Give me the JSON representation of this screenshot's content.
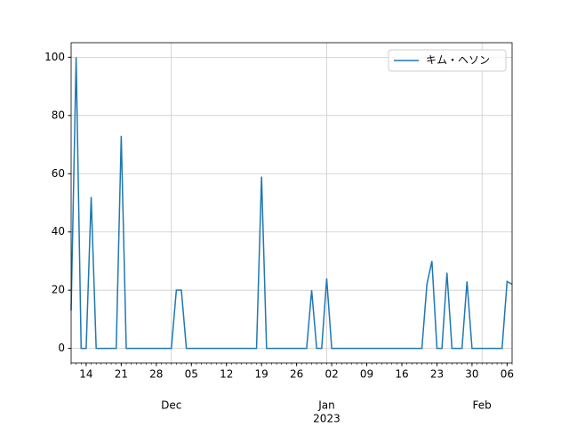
{
  "chart_data": {
    "type": "line",
    "x": [
      "2022-11-11",
      "2022-11-12",
      "2022-11-13",
      "2022-11-14",
      "2022-11-15",
      "2022-11-16",
      "2022-11-17",
      "2022-11-18",
      "2022-11-19",
      "2022-11-20",
      "2022-11-21",
      "2022-11-22",
      "2022-11-23",
      "2022-11-24",
      "2022-11-25",
      "2022-11-26",
      "2022-11-27",
      "2022-11-28",
      "2022-11-29",
      "2022-11-30",
      "2022-12-01",
      "2022-12-02",
      "2022-12-03",
      "2022-12-04",
      "2022-12-05",
      "2022-12-06",
      "2022-12-07",
      "2022-12-08",
      "2022-12-09",
      "2022-12-10",
      "2022-12-11",
      "2022-12-12",
      "2022-12-13",
      "2022-12-14",
      "2022-12-15",
      "2022-12-16",
      "2022-12-17",
      "2022-12-18",
      "2022-12-19",
      "2022-12-20",
      "2022-12-21",
      "2022-12-22",
      "2022-12-23",
      "2022-12-24",
      "2022-12-25",
      "2022-12-26",
      "2022-12-27",
      "2022-12-28",
      "2022-12-29",
      "2022-12-30",
      "2022-12-31",
      "2023-01-01",
      "2023-01-02",
      "2023-01-03",
      "2023-01-04",
      "2023-01-05",
      "2023-01-06",
      "2023-01-07",
      "2023-01-08",
      "2023-01-09",
      "2023-01-10",
      "2023-01-11",
      "2023-01-12",
      "2023-01-13",
      "2023-01-14",
      "2023-01-15",
      "2023-01-16",
      "2023-01-17",
      "2023-01-18",
      "2023-01-19",
      "2023-01-20",
      "2023-01-21",
      "2023-01-22",
      "2023-01-23",
      "2023-01-24",
      "2023-01-25",
      "2023-01-26",
      "2023-01-27",
      "2023-01-28",
      "2023-01-29",
      "2023-01-30",
      "2023-01-31",
      "2023-02-01",
      "2023-02-02",
      "2023-02-03",
      "2023-02-04",
      "2023-02-05",
      "2023-02-06",
      "2023-02-07"
    ],
    "series": [
      {
        "name": "キム・ヘソン",
        "color": "#1f77b4",
        "values": [
          13,
          100,
          0,
          0,
          52,
          0,
          0,
          0,
          0,
          0,
          73,
          0,
          0,
          0,
          0,
          0,
          0,
          0,
          0,
          0,
          0,
          20,
          20,
          0,
          0,
          0,
          0,
          0,
          0,
          0,
          0,
          0,
          0,
          0,
          0,
          0,
          0,
          0,
          59,
          0,
          0,
          0,
          0,
          0,
          0,
          0,
          0,
          0,
          20,
          0,
          0,
          24,
          0,
          0,
          0,
          0,
          0,
          0,
          0,
          0,
          0,
          0,
          0,
          0,
          0,
          0,
          0,
          0,
          0,
          0,
          0,
          22,
          30,
          0,
          0,
          26,
          0,
          0,
          0,
          23,
          0,
          0,
          0,
          0,
          0,
          0,
          0,
          23,
          22
        ]
      }
    ],
    "xlim": [
      "2022-11-11",
      "2023-02-07"
    ],
    "xticks": [
      {
        "value": "2022-11-14",
        "label": "14"
      },
      {
        "value": "2022-11-21",
        "label": "21"
      },
      {
        "value": "2022-11-28",
        "label": "28"
      },
      {
        "value": "2022-12-05",
        "label": "05"
      },
      {
        "value": "2022-12-12",
        "label": "12"
      },
      {
        "value": "2022-12-19",
        "label": "19"
      },
      {
        "value": "2022-12-26",
        "label": "26"
      },
      {
        "value": "2023-01-02",
        "label": "02"
      },
      {
        "value": "2023-01-09",
        "label": "09"
      },
      {
        "value": "2023-01-16",
        "label": "16"
      },
      {
        "value": "2023-01-23",
        "label": "23"
      },
      {
        "value": "2023-01-30",
        "label": "30"
      },
      {
        "value": "2023-02-06",
        "label": "06"
      }
    ],
    "xmonth_ticks": [
      {
        "value": "2022-12-01",
        "label": "Dec"
      },
      {
        "value": "2023-01-01",
        "label": "Jan"
      },
      {
        "value": "2023-02-01",
        "label": "Feb"
      }
    ],
    "year_label": {
      "value": "2023-01-01",
      "label": "2023"
    },
    "ylim": [
      -5,
      105
    ],
    "yticks": [
      0,
      20,
      40,
      60,
      80,
      100
    ],
    "grid": true,
    "legend": "upper right"
  }
}
